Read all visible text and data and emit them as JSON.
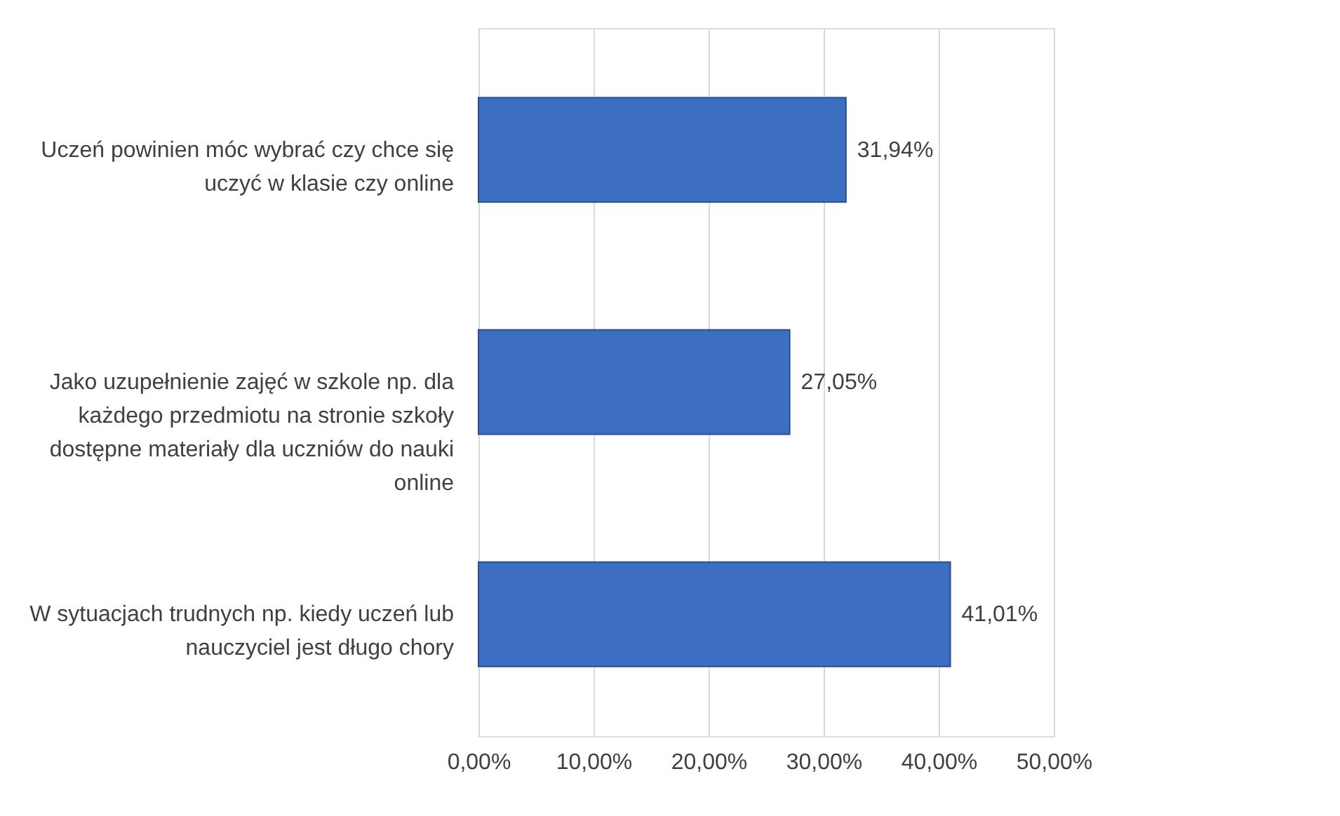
{
  "chart_data": {
    "type": "bar",
    "orientation": "horizontal",
    "categories": [
      "Uczeń powinien móc wybrać czy chce się uczyć w klasie czy online",
      "Jako uzupełnienie zajęć w szkole np. dla każdego przedmiotu na stronie szkoły dostępne materiały dla uczniów do nauki online",
      "W sytuacjach trudnych np. kiedy uczeń lub nauczyciel jest długo chory"
    ],
    "values": [
      31.94,
      27.05,
      41.01
    ],
    "value_labels": [
      "31,94%",
      "27,05%",
      "41,01%"
    ],
    "color": "#3c6fc2",
    "xlim": [
      0,
      50
    ],
    "xticks": [
      {
        "value": 0,
        "label": "0,00%"
      },
      {
        "value": 10,
        "label": "10,00%"
      },
      {
        "value": 20,
        "label": "20,00%"
      },
      {
        "value": 30,
        "label": "30,00%"
      },
      {
        "value": 40,
        "label": "40,00%"
      },
      {
        "value": 50,
        "label": "50,00%"
      }
    ],
    "grid": "x"
  }
}
